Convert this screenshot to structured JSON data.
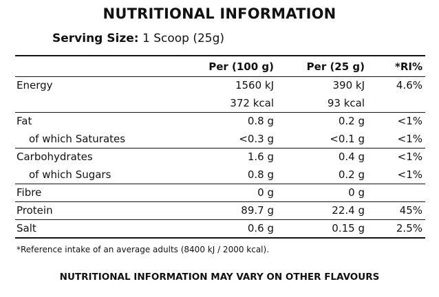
{
  "title": "NUTRITIONAL INFORMATION",
  "serving": {
    "label": "Serving Size:",
    "value": "1 Scoop (25g)"
  },
  "header": {
    "col1": "Per (100 g)",
    "col2": "Per (25 g)",
    "col3": "*RI%"
  },
  "rows": [
    {
      "label": "Energy",
      "per100": "1560 kJ",
      "per25": "390 kJ",
      "ri": "4.6%"
    },
    {
      "label": "",
      "per100": "372 kcal",
      "per25": "93 kcal",
      "ri": ""
    },
    {
      "label": "Fat",
      "per100": "0.8 g",
      "per25": "0.2 g",
      "ri": "<1%"
    },
    {
      "label": "of which Saturates",
      "per100": "<0.3 g",
      "per25": "<0.1 g",
      "ri": "<1%"
    },
    {
      "label": "Carbohydrates",
      "per100": "1.6 g",
      "per25": "0.4 g",
      "ri": "<1%"
    },
    {
      "label": "of which Sugars",
      "per100": "0.8 g",
      "per25": "0.2 g",
      "ri": "<1%"
    },
    {
      "label": "Fibre",
      "per100": "0 g",
      "per25": "0 g",
      "ri": ""
    },
    {
      "label": "Protein",
      "per100": "89.7 g",
      "per25": "22.4 g",
      "ri": "45%"
    },
    {
      "label": "Salt",
      "per100": "0.6 g",
      "per25": "0.15 g",
      "ri": "2.5%"
    }
  ],
  "footnote": "*Reference intake of an average adults (8400 kJ / 2000 kcal).",
  "footer": "NUTRITIONAL INFORMATION MAY VARY ON OTHER FLAVOURS"
}
